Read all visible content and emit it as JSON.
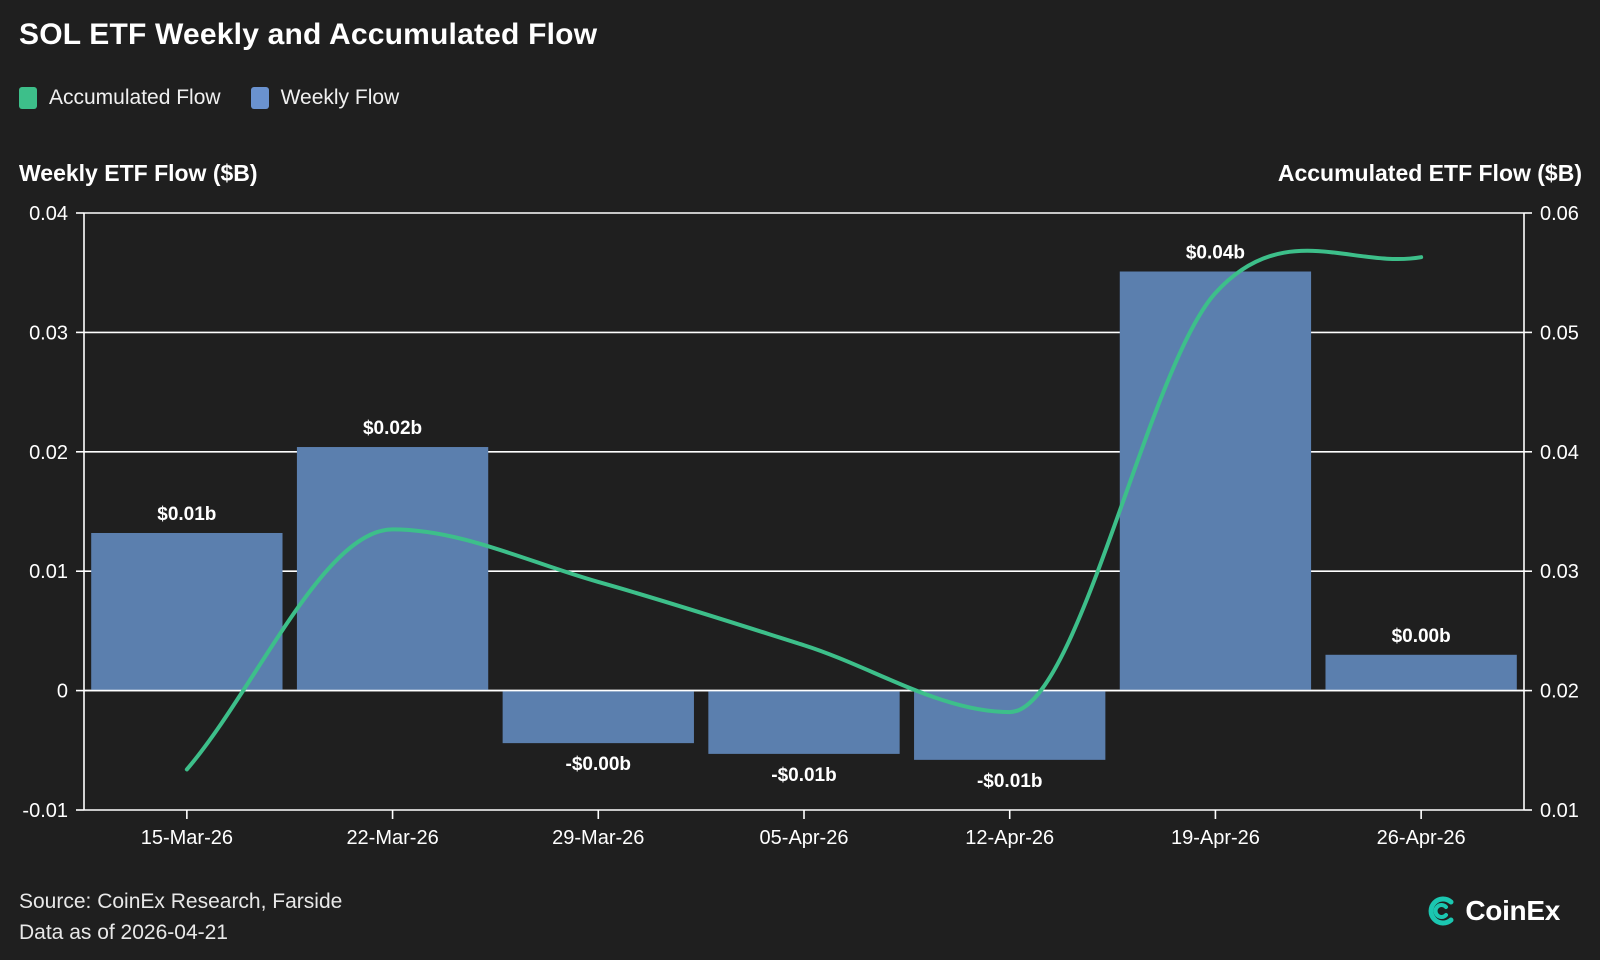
{
  "title": "SOL ETF Weekly and Accumulated Flow",
  "legend": [
    {
      "label": "Accumulated Flow",
      "color": "#3dbf8a"
    },
    {
      "label": "Weekly Flow",
      "color": "#6a92cf"
    }
  ],
  "axis_titles": {
    "left": "Weekly ETF Flow ($B)",
    "right": "Accumulated ETF Flow ($B)"
  },
  "footer": {
    "source": "Source: CoinEx Research, Farside",
    "date": "Data as of 2026-04-21"
  },
  "logo": {
    "text": "CoinEx",
    "icon": "coinex-logo-icon"
  },
  "colors": {
    "background": "#1f1f1f",
    "bar": "#5b7fae",
    "line": "#3dbf8a",
    "grid": "#ffffff"
  },
  "chart_data": {
    "type": "bar",
    "categories": [
      "15-Mar-26",
      "22-Mar-26",
      "29-Mar-26",
      "05-Apr-26",
      "12-Apr-26",
      "19-Apr-26",
      "26-Apr-26"
    ],
    "series": [
      {
        "name": "Weekly Flow",
        "type": "bar",
        "axis": "left",
        "values": [
          0.0132,
          0.0204,
          -0.0044,
          -0.0053,
          -0.0058,
          0.0351,
          0.003
        ],
        "labels": [
          "$0.01b",
          "$0.02b",
          "-$0.00b",
          "-$0.01b",
          "-$0.01b",
          "$0.04b",
          "$0.00b"
        ]
      },
      {
        "name": "Accumulated Flow",
        "type": "line",
        "axis": "right",
        "values": [
          0.0134,
          0.0335,
          0.0291,
          0.0238,
          0.0182,
          0.0533,
          0.0563
        ]
      }
    ],
    "y_left": {
      "lim": [
        -0.01,
        0.04
      ],
      "ticks": [
        "-0.01",
        "0",
        "0.01",
        "0.02",
        "0.03",
        "0.04"
      ]
    },
    "y_right": {
      "lim": [
        0.01,
        0.06
      ],
      "ticks": [
        "0.01",
        "0.02",
        "0.03",
        "0.04",
        "0.05",
        "0.06"
      ]
    },
    "grid": true,
    "legend_position": "top-left"
  }
}
